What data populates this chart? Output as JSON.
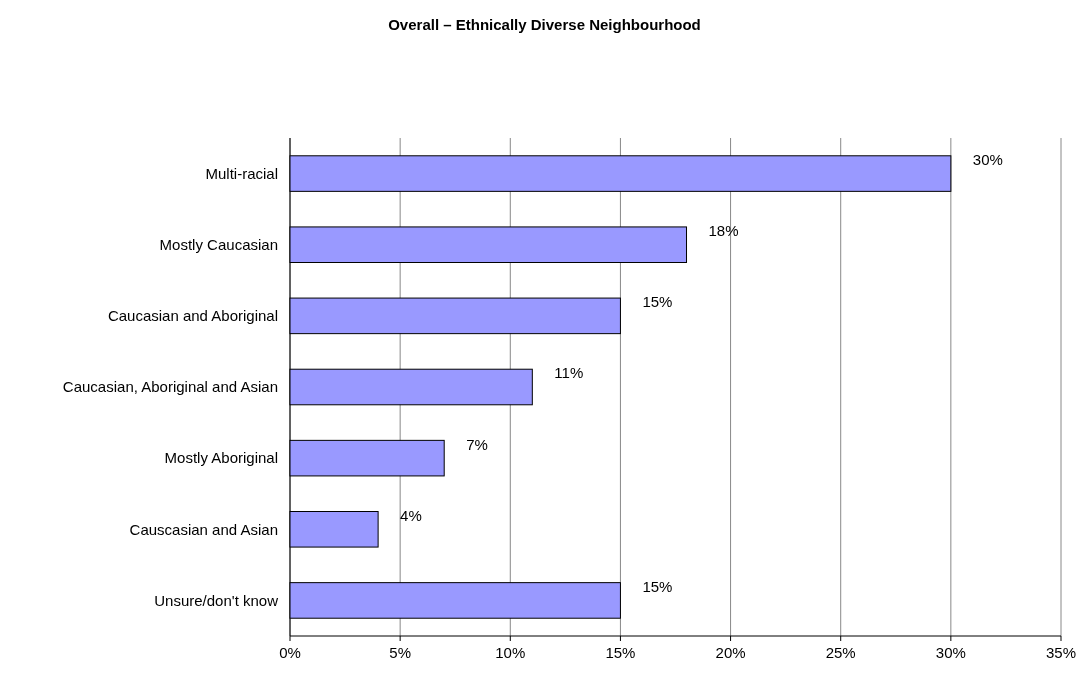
{
  "chart_data": {
    "type": "bar",
    "orientation": "horizontal",
    "title": "Overall – Ethnically Diverse Neighbourhood",
    "categories": [
      "Multi-racial",
      "Mostly  Caucasian",
      "Caucasian and Aboriginal",
      "Caucasian, Aboriginal and Asian",
      "Mostly  Aboriginal",
      "Causcasian and Asian",
      "Unsure/don't know"
    ],
    "values": [
      30,
      18,
      15,
      11,
      7,
      4,
      15
    ],
    "color": "#9999ff",
    "xlim": [
      0,
      35
    ],
    "xticks": [
      {
        "value": 0,
        "label": "0%"
      },
      {
        "value": 5,
        "label": "5%"
      },
      {
        "value": 10,
        "label": "10%"
      },
      {
        "value": 15,
        "label": "15%"
      },
      {
        "value": 20,
        "label": "20%"
      },
      {
        "value": 25,
        "label": "25%"
      },
      {
        "value": 30,
        "label": "30%"
      },
      {
        "value": 35,
        "label": "35%"
      }
    ],
    "value_labels": [
      "30%",
      "18%",
      "15%",
      "11%",
      "7%",
      "4%",
      "15%"
    ],
    "grid": "x"
  }
}
